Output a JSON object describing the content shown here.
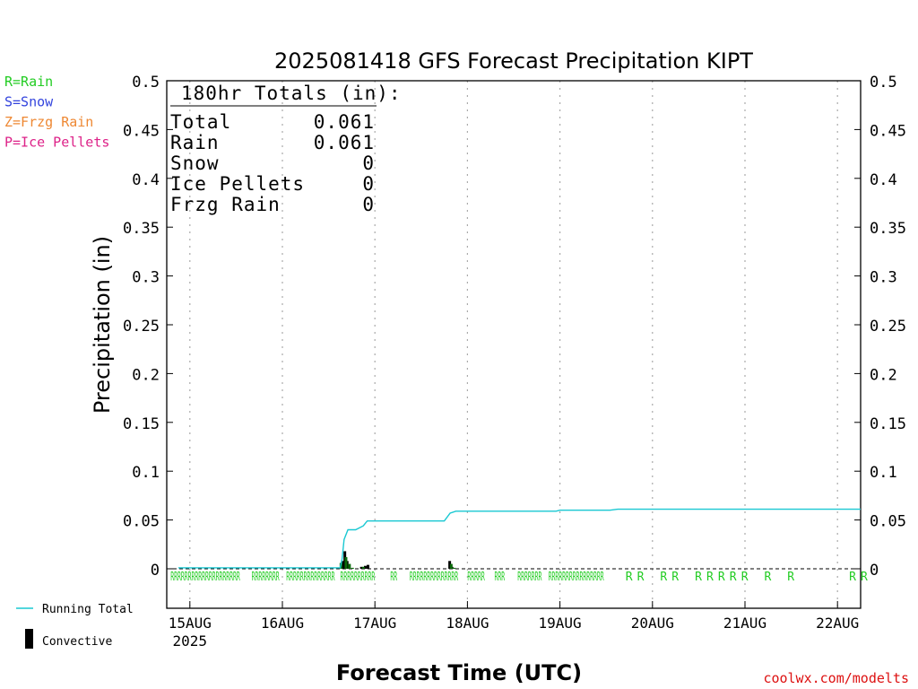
{
  "chart_data": {
    "type": "bar",
    "title": "2025081418 GFS Forecast Precipitation KIPT",
    "xlabel": "Forecast Time (UTC)",
    "ylabel": "Precipitation (in)",
    "ylim": [
      0,
      0.5
    ],
    "y_ticks": [
      0,
      0.05,
      0.1,
      0.15,
      0.2,
      0.25,
      0.3,
      0.35,
      0.4,
      0.45,
      0.5
    ],
    "y_tick_labels": [
      "0",
      "0.05",
      "0.1",
      "0.15",
      "0.2",
      "0.25",
      "0.3",
      "0.35",
      "0.4",
      "0.45",
      "0.5"
    ],
    "x_unit": "hours from 2025-08-14 18Z",
    "xlim": [
      0,
      180
    ],
    "x_ticks": [
      {
        "x": 6,
        "label": "15AUG"
      },
      {
        "x": 30,
        "label": "16AUG"
      },
      {
        "x": 54,
        "label": "17AUG"
      },
      {
        "x": 78,
        "label": "18AUG"
      },
      {
        "x": 102,
        "label": "19AUG"
      },
      {
        "x": 126,
        "label": "20AUG"
      },
      {
        "x": 150,
        "label": "21AUG"
      },
      {
        "x": 174,
        "label": "22AUG"
      }
    ],
    "x_year_label": "2025",
    "grid": "vertical-dotted",
    "series": [
      {
        "name": "Running Total",
        "kind": "line",
        "color": "#19c8d2",
        "points": [
          [
            3,
            0.001
          ],
          [
            45,
            0.001
          ],
          [
            45.5,
            0.01
          ],
          [
            46,
            0.03
          ],
          [
            47,
            0.04
          ],
          [
            49,
            0.04
          ],
          [
            51,
            0.044
          ],
          [
            52,
            0.049
          ],
          [
            64,
            0.049
          ],
          [
            72,
            0.049
          ],
          [
            73.5,
            0.057
          ],
          [
            75,
            0.059
          ],
          [
            101,
            0.059
          ],
          [
            102,
            0.06
          ],
          [
            115,
            0.06
          ],
          [
            117,
            0.061
          ],
          [
            180,
            0.061
          ]
        ]
      },
      {
        "name": "Convective",
        "kind": "bar",
        "color": "#000000",
        "bars": [
          [
            45.6,
            0.008
          ],
          [
            46.2,
            0.018
          ],
          [
            46.8,
            0.008
          ],
          [
            50.5,
            0.002
          ],
          [
            51.5,
            0.003
          ],
          [
            52.2,
            0.004
          ],
          [
            73.4,
            0.008
          ],
          [
            74,
            0.002
          ]
        ]
      },
      {
        "name": "Precipitation",
        "kind": "bar",
        "color": "#0a6a0a",
        "bars": [
          [
            45.2,
            0.006
          ],
          [
            46.5,
            0.012
          ],
          [
            47.4,
            0.005
          ],
          [
            48.2,
            0.001
          ],
          [
            51,
            0.002
          ],
          [
            73.8,
            0.005
          ],
          [
            74.6,
            0.001
          ]
        ]
      }
    ],
    "ptype_row": {
      "color": "#22cc22",
      "marks": [
        {
          "x": 1,
          "label": "RRRRRRRRRR"
        },
        {
          "x": 10,
          "label": "RRRRRRRRRR"
        },
        {
          "x": 22,
          "label": "RRRRRRRR"
        },
        {
          "x": 31,
          "label": "RRRRRRRRRRRRRR"
        },
        {
          "x": 45,
          "label": "RRRRRRRRRR"
        },
        {
          "x": 58,
          "label": "RR"
        },
        {
          "x": 63,
          "label": "RRRRRRRRRRRRRR"
        },
        {
          "x": 78,
          "label": "RRRRR"
        },
        {
          "x": 85,
          "label": "RRR"
        },
        {
          "x": 91,
          "label": "RRRRRRR"
        },
        {
          "x": 99,
          "label": "RRRRRRRRRRRRRRRR"
        },
        {
          "x": 119,
          "label": "R"
        },
        {
          "x": 122,
          "label": "R"
        },
        {
          "x": 128,
          "label": "R"
        },
        {
          "x": 131,
          "label": "R"
        },
        {
          "x": 137,
          "label": "R"
        },
        {
          "x": 140,
          "label": "R"
        },
        {
          "x": 143,
          "label": "R"
        },
        {
          "x": 146,
          "label": "R"
        },
        {
          "x": 149,
          "label": "R"
        },
        {
          "x": 155,
          "label": "R"
        },
        {
          "x": 161,
          "label": "R"
        },
        {
          "x": 177,
          "label": "R"
        },
        {
          "x": 180,
          "label": "R"
        }
      ]
    },
    "totals_box": {
      "heading": "180hr Totals (in):",
      "rows": [
        {
          "label": "Total",
          "value": "0.061"
        },
        {
          "label": "Rain",
          "value": "0.061"
        },
        {
          "label": "Snow",
          "value": "0"
        },
        {
          "label": "Ice Pellets",
          "value": "0"
        },
        {
          "label": "Frzg Rain",
          "value": "0"
        }
      ]
    },
    "ptype_legend": [
      {
        "text": "R=Rain",
        "color": "#22cc22"
      },
      {
        "text": "S=Snow",
        "color": "#3344dd"
      },
      {
        "text": "Z=Frzg Rain",
        "color": "#ee8833"
      },
      {
        "text": "P=Ice Pellets",
        "color": "#dd2288"
      }
    ],
    "series_legend": [
      {
        "text": "Running Total",
        "kind": "line",
        "color": "#19c8d2"
      },
      {
        "text": "Convective",
        "kind": "bar",
        "color": "#000000"
      }
    ],
    "credit": {
      "text": "coolwx.com/modelts",
      "color": "#dd1111"
    }
  }
}
